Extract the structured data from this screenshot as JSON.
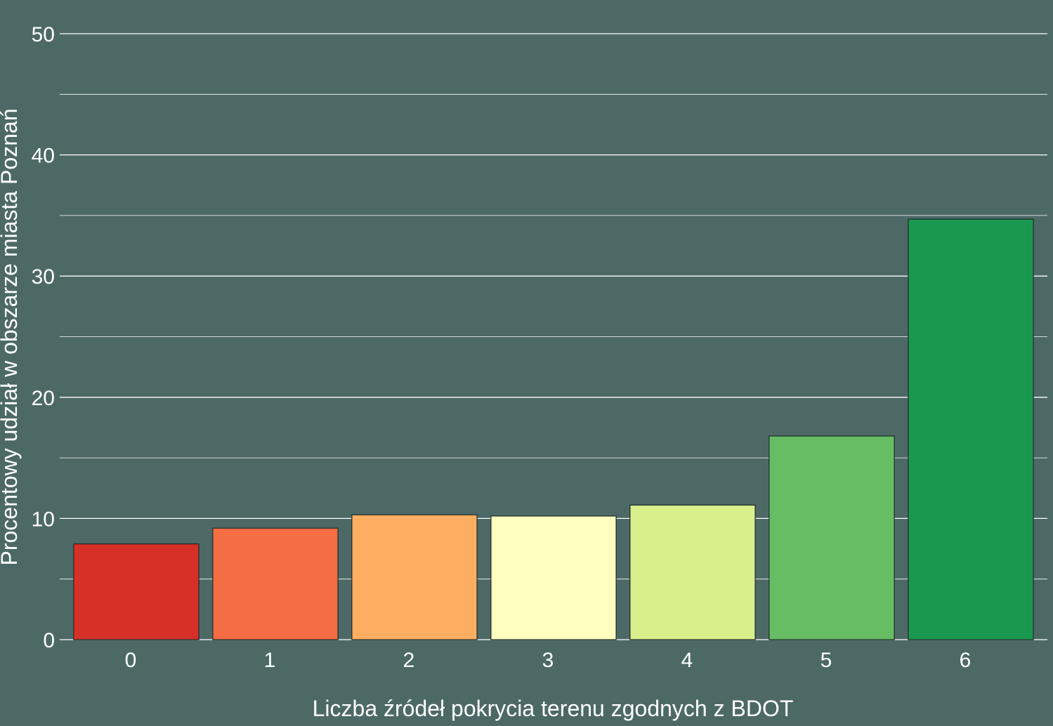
{
  "chart_data": {
    "type": "bar",
    "title": "",
    "xlabel": "Liczba źródeł pokrycia terenu zgodnych z BDOT",
    "ylabel": "Procentowy udział w obszarze miasta Poznań",
    "categories": [
      "0",
      "1",
      "2",
      "3",
      "4",
      "5",
      "6"
    ],
    "values": [
      7.9,
      9.2,
      10.3,
      10.2,
      11.1,
      16.8,
      34.7
    ],
    "colors": [
      "#d73027",
      "#f46d43",
      "#fdae61",
      "#ffffbf",
      "#d9ef8b",
      "#66bd63",
      "#1a9850"
    ],
    "ylim": [
      0,
      50
    ],
    "yticks": [
      "0",
      "10",
      "20",
      "30",
      "40",
      "50"
    ],
    "grid": true,
    "legend": "none"
  }
}
